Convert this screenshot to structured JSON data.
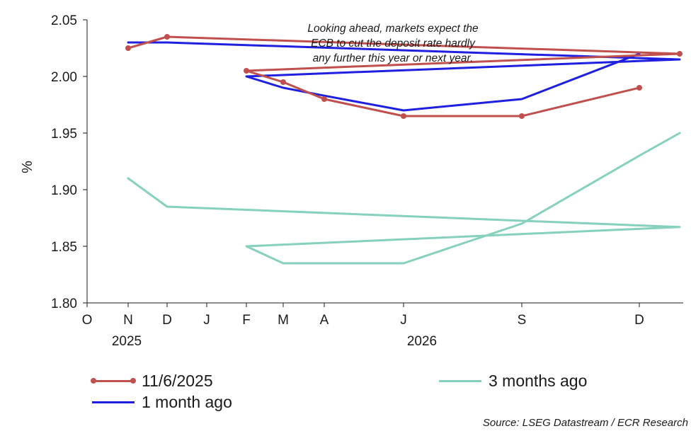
{
  "chart_data": {
    "type": "line",
    "ylabel": "%",
    "ylim": [
      1.8,
      2.05
    ],
    "y_ticks": [
      "2.05",
      "2.00",
      "1.95",
      "1.90",
      "1.85",
      "1.80"
    ],
    "x_tick_labels": [
      "O",
      "N",
      "D",
      "J",
      "F",
      "M",
      "A",
      "J",
      "S",
      "D"
    ],
    "year_labels": [
      "2025",
      "2026"
    ],
    "annotation": [
      "Looking ahead, markets expect the",
      "ECB to cut the  deposit rate hardly",
      "any further this year or next year."
    ],
    "series": [
      {
        "name": "11/6/2025",
        "color": "#c0504d",
        "markers": true,
        "x": [
          "Nov",
          "Dec",
          "Jan",
          "Feb",
          "Mar",
          "Apr",
          "Jun",
          "Sep",
          "Dec"
        ],
        "values": [
          2.025,
          2.035,
          2.02,
          2.005,
          1.995,
          1.98,
          1.965,
          1.965,
          1.99
        ]
      },
      {
        "name": "1 month ago",
        "color": "#1f1fe0",
        "markers": false,
        "x": [
          "Nov",
          "Dec",
          "Jan",
          "Feb",
          "Mar",
          "Apr",
          "Jun",
          "Sep",
          "Dec"
        ],
        "values": [
          2.03,
          2.03,
          2.015,
          2.0,
          1.99,
          1.983,
          1.97,
          1.98,
          2.02
        ]
      },
      {
        "name": "3 months ago",
        "color": "#86d1bd",
        "markers": false,
        "x": [
          "Nov",
          "Dec",
          "Jan",
          "Feb",
          "Mar",
          "Apr",
          "Jun",
          "Sep",
          "Dec",
          "Jan"
        ],
        "values": [
          1.91,
          1.885,
          1.867,
          1.85,
          1.835,
          1.835,
          1.835,
          1.87,
          1.93,
          1.95
        ]
      }
    ],
    "legend": [
      {
        "label": "11/6/2025"
      },
      {
        "label": "1 month ago"
      },
      {
        "label": "3 months ago"
      }
    ],
    "source": "Source: LSEG Datastream / ECR Research"
  }
}
